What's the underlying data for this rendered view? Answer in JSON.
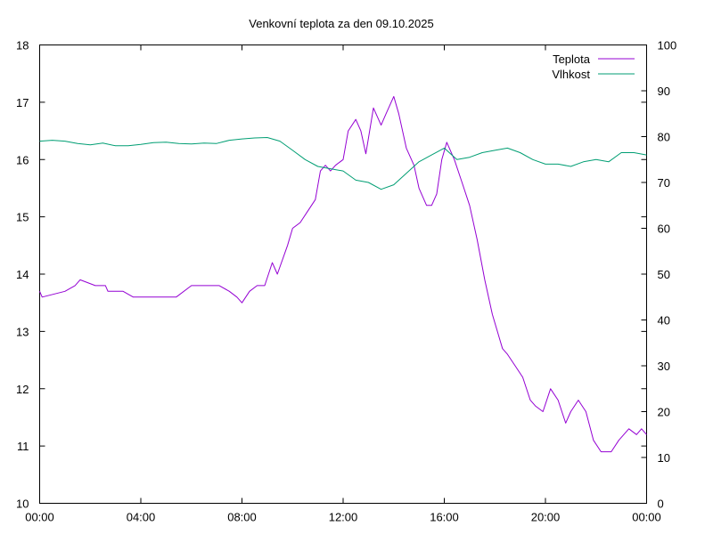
{
  "chart_data": {
    "type": "line",
    "title": "Venkovní teplota za den 09.10.2025",
    "xlabel": "",
    "ylabel": "",
    "y2label": "",
    "x_ticks": [
      "00:00",
      "04:00",
      "08:00",
      "12:00",
      "16:00",
      "20:00",
      "00:00"
    ],
    "xlim": [
      0,
      24
    ],
    "ylim": [
      10,
      18
    ],
    "y_ticks": [
      "10",
      "11",
      "12",
      "13",
      "14",
      "15",
      "16",
      "17",
      "18"
    ],
    "y2lim": [
      0,
      100
    ],
    "y2_ticks": [
      "0",
      "10",
      "20",
      "30",
      "40",
      "50",
      "60",
      "70",
      "80",
      "90",
      "100"
    ],
    "grid": false,
    "legend_position": "top-right",
    "series": [
      {
        "name": "Teplota",
        "axis": "left",
        "color": "#9400d3",
        "x": [
          0,
          0.1,
          1.0,
          1.4,
          1.6,
          2.2,
          2.6,
          2.7,
          3.3,
          3.7,
          4.2,
          5.4,
          6.0,
          7.1,
          7.5,
          7.8,
          8.0,
          8.3,
          8.6,
          8.9,
          9.2,
          9.4,
          9.8,
          10.0,
          10.3,
          10.6,
          10.9,
          11.1,
          11.3,
          11.5,
          11.7,
          12.0,
          12.2,
          12.5,
          12.7,
          12.9,
          13.2,
          13.5,
          13.7,
          14.0,
          14.2,
          14.5,
          14.8,
          15.0,
          15.3,
          15.5,
          15.7,
          15.9,
          16.1,
          16.4,
          16.7,
          17.0,
          17.3,
          17.6,
          17.9,
          18.1,
          18.3,
          18.5,
          18.8,
          19.1,
          19.4,
          19.6,
          19.9,
          20.2,
          20.5,
          20.8,
          21.0,
          21.3,
          21.6,
          21.9,
          22.2,
          22.6,
          22.9,
          23.3,
          23.6,
          23.8,
          24.0
        ],
        "y": [
          13.7,
          13.6,
          13.7,
          13.8,
          13.9,
          13.8,
          13.8,
          13.7,
          13.7,
          13.6,
          13.6,
          13.6,
          13.8,
          13.8,
          13.7,
          13.6,
          13.5,
          13.7,
          13.8,
          13.8,
          14.2,
          14.0,
          14.5,
          14.8,
          14.9,
          15.1,
          15.3,
          15.8,
          15.9,
          15.8,
          15.9,
          16.0,
          16.5,
          16.7,
          16.5,
          16.1,
          16.9,
          16.6,
          16.8,
          17.1,
          16.8,
          16.2,
          15.9,
          15.5,
          15.2,
          15.2,
          15.4,
          16.0,
          16.3,
          16.0,
          15.6,
          15.2,
          14.6,
          13.9,
          13.3,
          13.0,
          12.7,
          12.6,
          12.4,
          12.2,
          11.8,
          11.7,
          11.6,
          12.0,
          11.8,
          11.4,
          11.6,
          11.8,
          11.6,
          11.1,
          10.9,
          10.9,
          11.1,
          11.3,
          11.2,
          11.3,
          11.2
        ]
      },
      {
        "name": "Vlhkost",
        "axis": "right",
        "color": "#009e73",
        "x": [
          0,
          0.5,
          1.0,
          1.5,
          2.0,
          2.5,
          3.0,
          3.5,
          4.0,
          4.5,
          5.0,
          5.5,
          6.0,
          6.5,
          7.0,
          7.5,
          8.0,
          8.5,
          9.0,
          9.5,
          10.0,
          10.5,
          11.0,
          11.5,
          12.0,
          12.5,
          13.0,
          13.5,
          14.0,
          14.5,
          15.0,
          15.5,
          16.0,
          16.5,
          17.0,
          17.5,
          18.0,
          18.5,
          19.0,
          19.5,
          20.0,
          20.5,
          21.0,
          21.5,
          22.0,
          22.5,
          23.0,
          23.5,
          24.0
        ],
        "y": [
          79,
          79.2,
          79,
          78.5,
          78.2,
          78.6,
          78,
          78,
          78.3,
          78.7,
          78.8,
          78.5,
          78.4,
          78.6,
          78.5,
          79.2,
          79.5,
          79.7,
          79.8,
          79,
          77,
          75,
          73.5,
          73,
          72.5,
          70.5,
          70,
          68.5,
          69.5,
          72,
          74.5,
          76,
          77.5,
          75,
          75.5,
          76.5,
          77,
          77.5,
          76.5,
          75,
          74,
          74,
          73.5,
          74.5,
          75,
          74.5,
          76.5,
          76.5,
          76
        ]
      }
    ]
  }
}
